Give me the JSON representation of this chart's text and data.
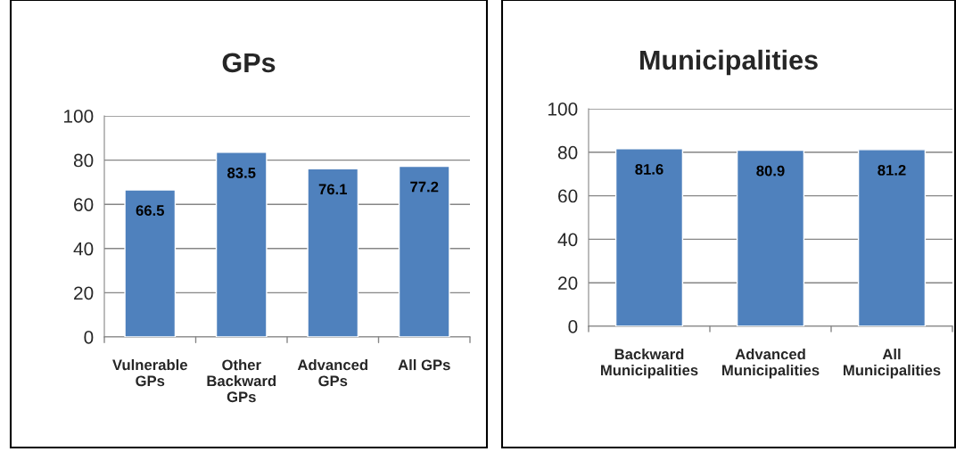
{
  "chart_data": [
    {
      "type": "bar",
      "title": "GPs",
      "categories": [
        "Vulnerable\nGPs",
        "Other\nBackward\nGPs",
        "Advanced\nGPs",
        "All GPs"
      ],
      "values": [
        66.5,
        83.5,
        76.1,
        77.2
      ],
      "color": "#4f81bd",
      "ylim": [
        0,
        100
      ],
      "yticks": [
        0,
        20,
        40,
        60,
        80,
        100
      ],
      "grid": "y",
      "data_labels": true
    },
    {
      "type": "bar",
      "title": "Municipalities",
      "categories": [
        "Backward\nMunicipalities",
        "Advanced\nMunicipalities",
        "All\nMunicipalities"
      ],
      "values": [
        81.6,
        80.9,
        81.2
      ],
      "color": "#4f81bd",
      "ylim": [
        0,
        100
      ],
      "yticks": [
        0,
        20,
        40,
        60,
        80,
        100
      ],
      "grid": "y",
      "data_labels": true
    }
  ]
}
